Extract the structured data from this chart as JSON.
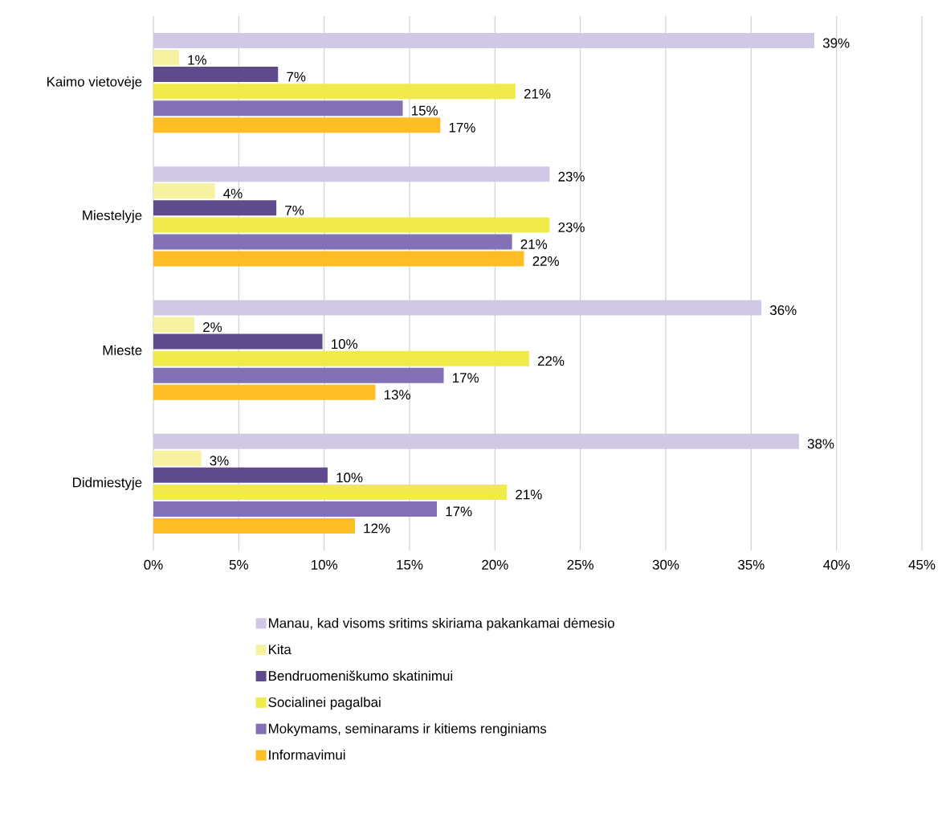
{
  "chart_data": {
    "type": "bar",
    "orientation": "horizontal",
    "categories": [
      "Kaimo vietovėje",
      "Miestelyje",
      "Mieste",
      "Didmiestyje"
    ],
    "series": [
      {
        "name": "Manau, kad visoms sritims skiriama pakankamai dėmesio",
        "color": "#d0c8e4",
        "values": [
          38.7,
          23.2,
          35.6,
          37.8
        ],
        "value_labels": [
          "39%",
          "23%",
          "36%",
          "38%"
        ]
      },
      {
        "name": "Kita",
        "color": "#f6f2a0",
        "values": [
          1.5,
          3.6,
          2.4,
          2.8
        ],
        "value_labels": [
          "1%",
          "4%",
          "2%",
          "3%"
        ]
      },
      {
        "name": "Bendruomeniškumo skatinimui",
        "color": "#5f4b8b",
        "values": [
          7.3,
          7.2,
          9.9,
          10.2
        ],
        "value_labels": [
          "7%",
          "7%",
          "10%",
          "10%"
        ]
      },
      {
        "name": "Socialinei pagalbai",
        "color": "#f0eb4a",
        "values": [
          21.2,
          23.2,
          22.0,
          20.7
        ],
        "value_labels": [
          "21%",
          "23%",
          "22%",
          "21%"
        ]
      },
      {
        "name": "Mokymams, seminarams ir kitiems renginiams",
        "color": "#8470b4",
        "values": [
          14.6,
          21.0,
          17.0,
          16.6
        ],
        "value_labels": [
          "15%",
          "21%",
          "17%",
          "17%"
        ]
      },
      {
        "name": "Informavimui",
        "color": "#ffbd24",
        "values": [
          16.8,
          21.7,
          13.0,
          11.8
        ],
        "value_labels": [
          "17%",
          "22%",
          "13%",
          "12%"
        ]
      }
    ],
    "xlim": [
      0,
      45
    ],
    "xticks": [
      {
        "value": 0,
        "label": "0%"
      },
      {
        "value": 5,
        "label": "5%"
      },
      {
        "value": 10,
        "label": "10%"
      },
      {
        "value": 15,
        "label": "15%"
      },
      {
        "value": 20,
        "label": "20%"
      },
      {
        "value": 25,
        "label": "25%"
      },
      {
        "value": 30,
        "label": "30%"
      },
      {
        "value": 35,
        "label": "35%"
      },
      {
        "value": 40,
        "label": "40%"
      },
      {
        "value": 45,
        "label": "45%"
      }
    ],
    "grid": "x",
    "legend": "bottom"
  }
}
